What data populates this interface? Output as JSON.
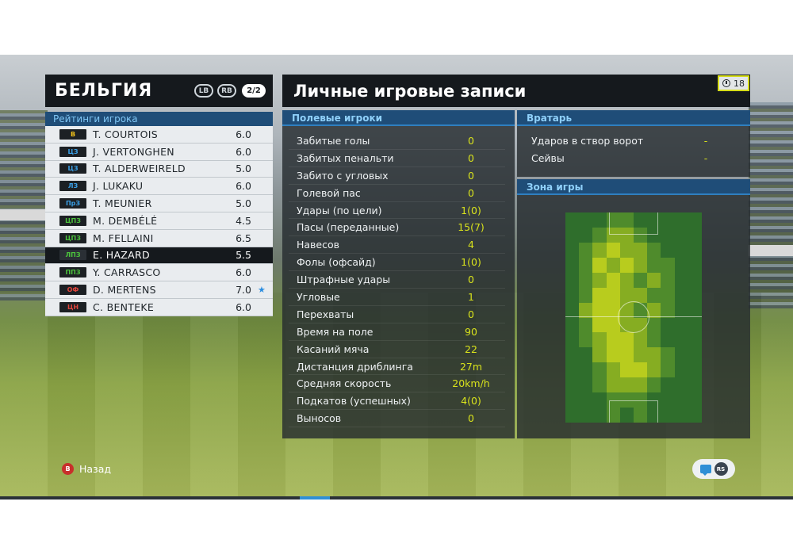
{
  "team": {
    "name": "БЕЛЬГИЯ",
    "lb_label": "LB",
    "rb_label": "RB",
    "page_indicator": "2/2"
  },
  "ratings": {
    "title": "Рейтинги игрока",
    "players": [
      {
        "pos": "В",
        "pos_color": "#f2c21a",
        "name": "T. COURTOIS",
        "rating": "6.0",
        "star": ""
      },
      {
        "pos": "ЦЗ",
        "pos_color": "#3aa0e8",
        "name": "J. VERTONGHEN",
        "rating": "6.0",
        "star": ""
      },
      {
        "pos": "ЦЗ",
        "pos_color": "#3aa0e8",
        "name": "T. ALDERWEIRELD",
        "rating": "5.0",
        "star": ""
      },
      {
        "pos": "ЛЗ",
        "pos_color": "#3aa0e8",
        "name": "J. LUKAKU",
        "rating": "6.0",
        "star": ""
      },
      {
        "pos": "ПрЗ",
        "pos_color": "#3aa0e8",
        "name": "T. MEUNIER",
        "rating": "5.0",
        "star": ""
      },
      {
        "pos": "ЦПЗ",
        "pos_color": "#4cc33d",
        "name": "M. DEMBÉLÉ",
        "rating": "4.5",
        "star": ""
      },
      {
        "pos": "ЦПЗ",
        "pos_color": "#4cc33d",
        "name": "M. FELLAINI",
        "rating": "6.5",
        "star": ""
      },
      {
        "pos": "ЛПЗ",
        "pos_color": "#4cc33d",
        "name": "E. HAZARD",
        "rating": "5.5",
        "star": "",
        "selected": true
      },
      {
        "pos": "ППЗ",
        "pos_color": "#4cc33d",
        "name": "Y. CARRASCO",
        "rating": "6.0",
        "star": ""
      },
      {
        "pos": "ОФ",
        "pos_color": "#e2463d",
        "name": "D. MERTENS",
        "rating": "7.0",
        "star": "★"
      },
      {
        "pos": "ЦН",
        "pos_color": "#e2463d",
        "name": "C. BENTEKE",
        "rating": "6.0",
        "star": ""
      }
    ]
  },
  "records": {
    "title": "Личные игровые записи",
    "timer": "18",
    "field_title": "Полевые игроки",
    "field_stats": [
      {
        "label": "Забитые голы",
        "value": "0"
      },
      {
        "label": "Забитых пенальти",
        "value": "0"
      },
      {
        "label": "Забито с угловых",
        "value": "0"
      },
      {
        "label": "Голевой пас",
        "value": "0"
      },
      {
        "label": "Удары (по цели)",
        "value": "1(0)"
      },
      {
        "label": "Пасы (переданные)",
        "value": "15(7)"
      },
      {
        "label": "Навесов",
        "value": "4"
      },
      {
        "label": "Фолы (офсайд)",
        "value": "1(0)"
      },
      {
        "label": "Штрафные удары",
        "value": "0"
      },
      {
        "label": "Угловые",
        "value": "1"
      },
      {
        "label": "Перехваты",
        "value": "0"
      },
      {
        "label": "Время на поле",
        "value": "90"
      },
      {
        "label": "Касаний мяча",
        "value": "22"
      },
      {
        "label": "Дистанция дриблинга",
        "value": "27m"
      },
      {
        "label": "Средняя скорость",
        "value": "20km/h"
      },
      {
        "label": "Подкатов (успешных)",
        "value": "4(0)"
      },
      {
        "label": "Выносов",
        "value": "0"
      }
    ],
    "gk_title": "Вратарь",
    "gk_stats": [
      {
        "label": "Ударов в створ ворот",
        "value": "-"
      },
      {
        "label": "Сейвы",
        "value": "-"
      }
    ],
    "zone_title": "Зона игры"
  },
  "footer": {
    "back_button": "B",
    "back_label": "Назад",
    "rs_label": "RS"
  },
  "heatmap_levels": [
    [
      0,
      0,
      0,
      1,
      1,
      0,
      0,
      0,
      0,
      0
    ],
    [
      0,
      0,
      1,
      2,
      2,
      1,
      0,
      0,
      0,
      0
    ],
    [
      0,
      1,
      2,
      3,
      2,
      2,
      1,
      0,
      0,
      0
    ],
    [
      0,
      1,
      3,
      2,
      3,
      2,
      1,
      1,
      0,
      0
    ],
    [
      0,
      1,
      2,
      3,
      2,
      1,
      2,
      1,
      0,
      0
    ],
    [
      0,
      1,
      3,
      3,
      2,
      2,
      1,
      1,
      0,
      0
    ],
    [
      0,
      2,
      3,
      3,
      2,
      1,
      2,
      1,
      0,
      0
    ],
    [
      0,
      1,
      3,
      3,
      2,
      2,
      1,
      0,
      0,
      0
    ],
    [
      0,
      1,
      2,
      3,
      3,
      2,
      1,
      0,
      0,
      0
    ],
    [
      0,
      0,
      2,
      3,
      3,
      2,
      2,
      1,
      0,
      0
    ],
    [
      0,
      0,
      1,
      2,
      3,
      3,
      2,
      1,
      0,
      0
    ],
    [
      0,
      0,
      1,
      2,
      2,
      2,
      1,
      0,
      0,
      0
    ],
    [
      0,
      0,
      0,
      1,
      1,
      1,
      0,
      0,
      0,
      0
    ],
    [
      0,
      0,
      0,
      1,
      0,
      1,
      0,
      0,
      0,
      0
    ]
  ]
}
